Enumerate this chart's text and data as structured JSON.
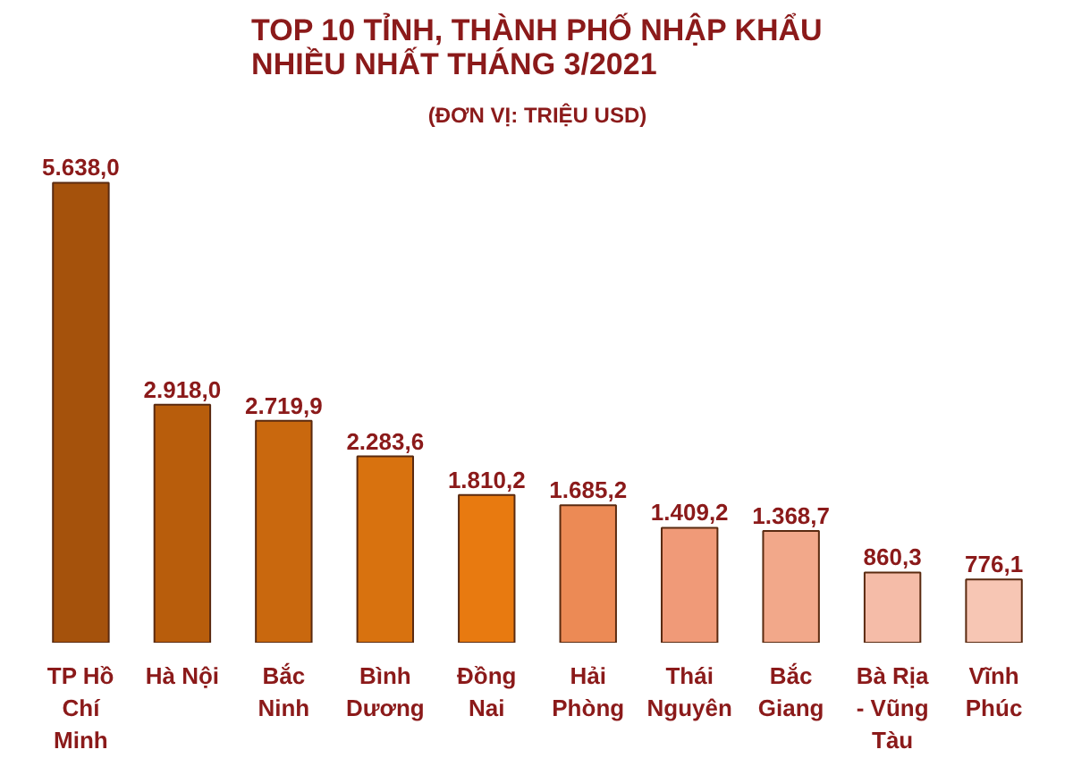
{
  "chart_data": {
    "type": "bar",
    "title": "TOP 10 TỈNH, THÀNH PHỐ NHẬP KHẨU NHIỀU NHẤT THÁNG 3/2021",
    "subtitle": "(ĐƠN VỊ: TRIỆU USD)",
    "categories": [
      "TP Hồ Chí Minh",
      "Hà Nội",
      "Bắc Ninh",
      "Bình Dương",
      "Đồng Nai",
      "Hải Phòng",
      "Thái Nguyên",
      "Bắc Giang",
      "Bà Rịa - Vũng Tàu",
      "Vĩnh Phúc"
    ],
    "values": [
      5638.0,
      2918.0,
      2719.9,
      2283.6,
      1810.2,
      1685.2,
      1409.2,
      1368.7,
      860.3,
      776.1
    ],
    "value_labels": [
      "5.638,0",
      "2.918,0",
      "2.719,9",
      "2.283,6",
      "1.810,2",
      "1.685,2",
      "1.409,2",
      "1.368,7",
      "860,3",
      "776,1"
    ],
    "colors": [
      "#a5520c",
      "#b85d0c",
      "#c9680e",
      "#d8720f",
      "#e87a10",
      "#ec8a55",
      "#f09a78",
      "#f2a88a",
      "#f5bca8",
      "#f7c6b4"
    ],
    "grid": false
  }
}
